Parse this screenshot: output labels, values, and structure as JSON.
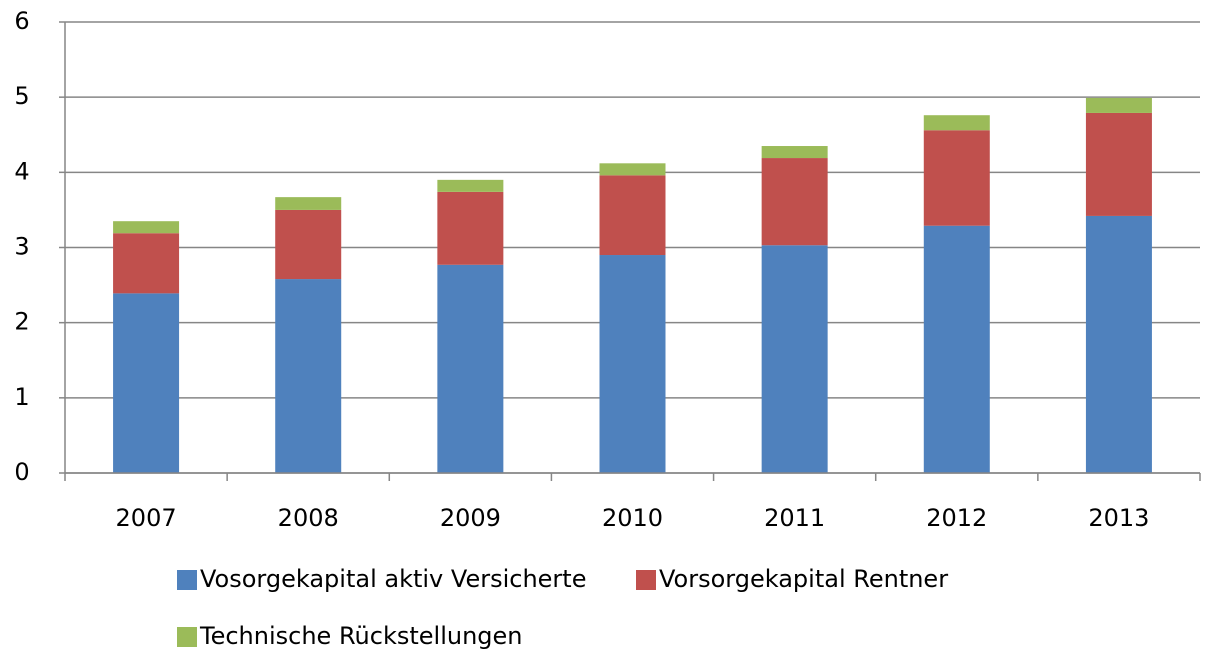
{
  "chart_data": {
    "type": "stacked_bar",
    "categories": [
      "2007",
      "2008",
      "2009",
      "2010",
      "2011",
      "2012",
      "2013"
    ],
    "series": [
      {
        "name": "Vosorgekapital aktiv Versicherte",
        "color": "#4f81bd",
        "values": [
          2.39,
          2.58,
          2.77,
          2.9,
          3.03,
          3.29,
          3.42
        ]
      },
      {
        "name": "Vorsorgekapital Rentner",
        "color": "#c0504d",
        "values": [
          0.8,
          0.92,
          0.97,
          1.06,
          1.16,
          1.27,
          1.37
        ]
      },
      {
        "name": "Technische Rückstellungen",
        "color": "#9bbb59",
        "values": [
          0.16,
          0.17,
          0.16,
          0.16,
          0.16,
          0.2,
          0.2
        ]
      }
    ],
    "ylim": [
      0,
      6
    ],
    "yticks": [
      0,
      1,
      2,
      3,
      4,
      5,
      6
    ],
    "grid": true
  }
}
